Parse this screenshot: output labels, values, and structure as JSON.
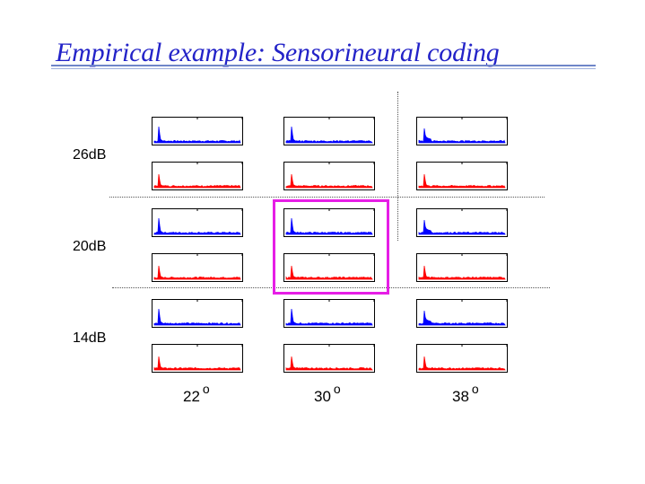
{
  "slide": {
    "title": "Empirical example: Sensorineural coding"
  },
  "rows": [
    {
      "label": "26dB"
    },
    {
      "label": "20dB"
    },
    {
      "label": "14dB"
    }
  ],
  "columns": [
    {
      "label": "22",
      "degree_mark": "o"
    },
    {
      "label": "30",
      "degree_mark": "o"
    },
    {
      "label": "38",
      "degree_mark": "o"
    }
  ],
  "colors": {
    "blue_trace": "#0000ff",
    "red_trace": "#ff0000",
    "highlight": "#e61ee6",
    "title": "#2323c8"
  }
}
